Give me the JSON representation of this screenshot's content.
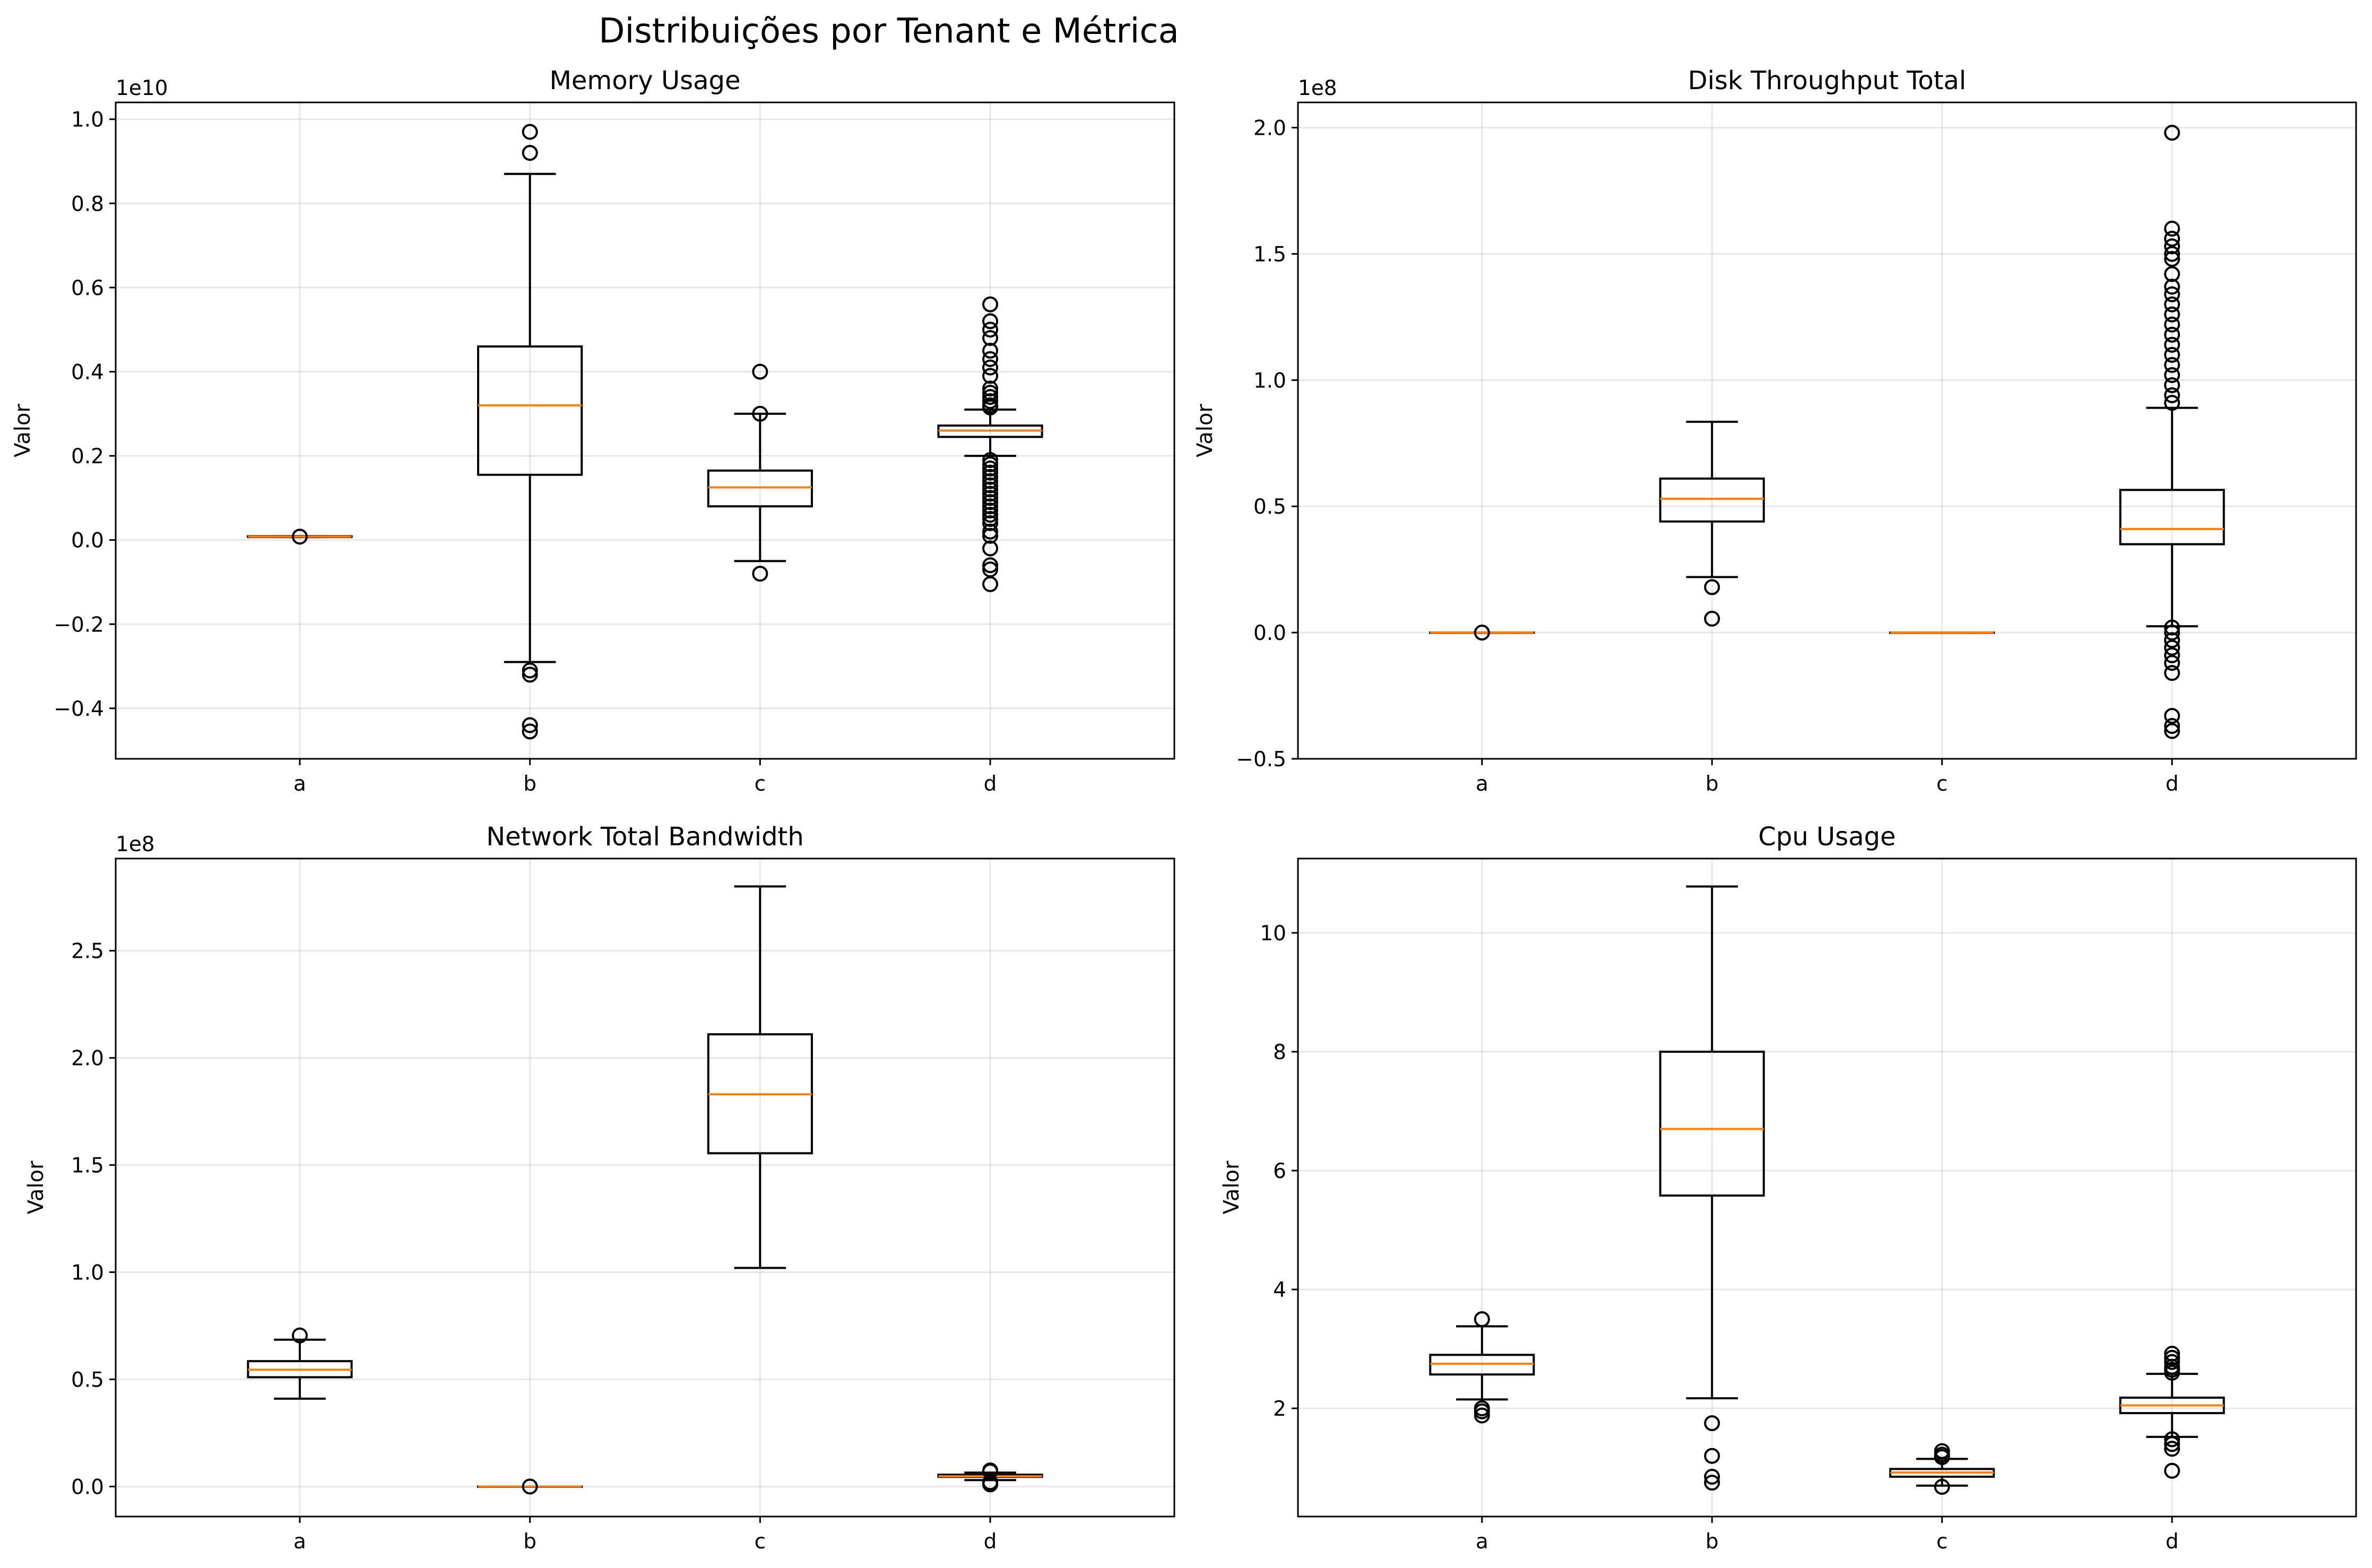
{
  "figure": {
    "title": "Distribuições por Tenant e Métrica"
  },
  "chart_data": [
    {
      "type": "box",
      "title": "Memory Usage",
      "xlabel": "",
      "ylabel": "Valor",
      "offset_label": "1e10",
      "categories": [
        "a",
        "b",
        "c",
        "d"
      ],
      "ylim": [
        -0.52,
        1.04
      ],
      "yticks": [
        -0.4,
        -0.2,
        0.0,
        0.2,
        0.4,
        0.6,
        0.8,
        1.0
      ],
      "yticklabels": [
        "−0.4",
        "−0.2",
        "0.0",
        "0.2",
        "0.4",
        "0.6",
        "0.8",
        "1.0"
      ],
      "grid": true,
      "boxes": [
        {
          "category": "a",
          "whislo": 0.007,
          "q1": 0.007,
          "median": 0.008,
          "q3": 0.009,
          "whishi": 0.009,
          "fliers": [
            0.008
          ]
        },
        {
          "category": "b",
          "whislo": -0.29,
          "q1": 0.155,
          "median": 0.32,
          "q3": 0.46,
          "whishi": 0.87,
          "fliers": [
            0.97,
            0.92,
            -0.31,
            -0.32,
            -0.44,
            -0.455
          ]
        },
        {
          "category": "c",
          "whislo": -0.05,
          "q1": 0.08,
          "median": 0.125,
          "q3": 0.165,
          "whishi": 0.3,
          "fliers": [
            0.4,
            0.3,
            -0.08
          ]
        },
        {
          "category": "d",
          "whislo": 0.2,
          "q1": 0.245,
          "median": 0.26,
          "q3": 0.272,
          "whishi": 0.31,
          "fliers": [
            0.56,
            0.52,
            0.5,
            0.48,
            0.45,
            0.43,
            0.41,
            0.39,
            0.36,
            0.35,
            0.34,
            0.33,
            0.32,
            0.315,
            0.19,
            0.18,
            0.17,
            0.16,
            0.15,
            0.14,
            0.13,
            0.12,
            0.11,
            0.1,
            0.09,
            0.08,
            0.07,
            0.06,
            0.05,
            0.04,
            0.02,
            0.01,
            -0.02,
            -0.06,
            -0.07,
            -0.105
          ]
        }
      ]
    },
    {
      "type": "box",
      "title": "Disk Throughput Total",
      "xlabel": "",
      "ylabel": "Valor",
      "offset_label": "1e8",
      "categories": [
        "a",
        "b",
        "c",
        "d"
      ],
      "ylim": [
        -0.5,
        2.1
      ],
      "yticks": [
        -0.5,
        0.0,
        0.5,
        1.0,
        1.5,
        2.0
      ],
      "yticklabels": [
        "−0.5",
        "0.0",
        "0.5",
        "1.0",
        "1.5",
        "2.0"
      ],
      "grid": true,
      "boxes": [
        {
          "category": "a",
          "whislo": 0.0,
          "q1": 0.0,
          "median": 0.0,
          "q3": 0.0,
          "whishi": 0.0,
          "fliers": [
            0.0
          ]
        },
        {
          "category": "b",
          "whislo": 0.22,
          "q1": 0.44,
          "median": 0.53,
          "q3": 0.61,
          "whishi": 0.835,
          "fliers": [
            0.18,
            0.055
          ]
        },
        {
          "category": "c",
          "whislo": 0.0,
          "q1": 0.0,
          "median": 0.0,
          "q3": 0.0,
          "whishi": 0.0,
          "fliers": []
        },
        {
          "category": "d",
          "whislo": 0.025,
          "q1": 0.35,
          "median": 0.41,
          "q3": 0.565,
          "whishi": 0.89,
          "fliers": [
            1.98,
            1.6,
            1.56,
            1.53,
            1.5,
            1.48,
            1.42,
            1.37,
            1.34,
            1.3,
            1.26,
            1.22,
            1.18,
            1.14,
            1.1,
            1.06,
            1.02,
            0.98,
            0.94,
            0.91,
            0.02,
            0.0,
            -0.03,
            -0.06,
            -0.09,
            -0.12,
            -0.16,
            -0.33,
            -0.37,
            -0.39
          ]
        }
      ]
    },
    {
      "type": "box",
      "title": "Network Total Bandwidth",
      "xlabel": "",
      "ylabel": "Valor",
      "offset_label": "1e8",
      "categories": [
        "a",
        "b",
        "c",
        "d"
      ],
      "ylim": [
        -0.14,
        2.93
      ],
      "yticks": [
        0.0,
        0.5,
        1.0,
        1.5,
        2.0,
        2.5
      ],
      "yticklabels": [
        "0.0",
        "0.5",
        "1.0",
        "1.5",
        "2.0",
        "2.5"
      ],
      "grid": true,
      "boxes": [
        {
          "category": "a",
          "whislo": 0.41,
          "q1": 0.51,
          "median": 0.545,
          "q3": 0.585,
          "whishi": 0.685,
          "fliers": [
            0.705
          ]
        },
        {
          "category": "b",
          "whislo": 0.0,
          "q1": 0.0,
          "median": 0.0,
          "q3": 0.0,
          "whishi": 0.0,
          "fliers": [
            0.0
          ]
        },
        {
          "category": "c",
          "whislo": 1.02,
          "q1": 1.555,
          "median": 1.83,
          "q3": 2.11,
          "whishi": 2.8,
          "fliers": []
        },
        {
          "category": "d",
          "whislo": 0.03,
          "q1": 0.045,
          "median": 0.048,
          "q3": 0.055,
          "whishi": 0.065,
          "fliers": [
            0.075,
            0.07,
            0.02,
            0.01
          ]
        }
      ]
    },
    {
      "type": "box",
      "title": "Cpu Usage",
      "xlabel": "",
      "ylabel": "Valor",
      "offset_label": "",
      "categories": [
        "a",
        "b",
        "c",
        "d"
      ],
      "ylim": [
        0.18,
        11.25
      ],
      "yticks": [
        2,
        4,
        6,
        8,
        10
      ],
      "yticklabels": [
        "2",
        "4",
        "6",
        "8",
        "10"
      ],
      "grid": true,
      "boxes": [
        {
          "category": "a",
          "whislo": 2.15,
          "q1": 2.57,
          "median": 2.75,
          "q3": 2.9,
          "whishi": 3.38,
          "fliers": [
            3.5,
            2.0,
            1.95,
            1.88
          ]
        },
        {
          "category": "b",
          "whislo": 2.17,
          "q1": 5.58,
          "median": 6.7,
          "q3": 8.0,
          "whishi": 10.78,
          "fliers": [
            1.75,
            1.2,
            0.85,
            0.75
          ]
        },
        {
          "category": "c",
          "whislo": 0.7,
          "q1": 0.85,
          "median": 0.92,
          "q3": 0.98,
          "whishi": 1.15,
          "fliers": [
            1.28,
            1.22,
            1.18,
            0.68
          ]
        },
        {
          "category": "d",
          "whislo": 1.52,
          "q1": 1.92,
          "median": 2.05,
          "q3": 2.18,
          "whishi": 2.58,
          "fliers": [
            2.92,
            2.85,
            2.78,
            2.7,
            2.65,
            2.6,
            1.48,
            1.4,
            1.32,
            0.95
          ]
        }
      ]
    }
  ]
}
